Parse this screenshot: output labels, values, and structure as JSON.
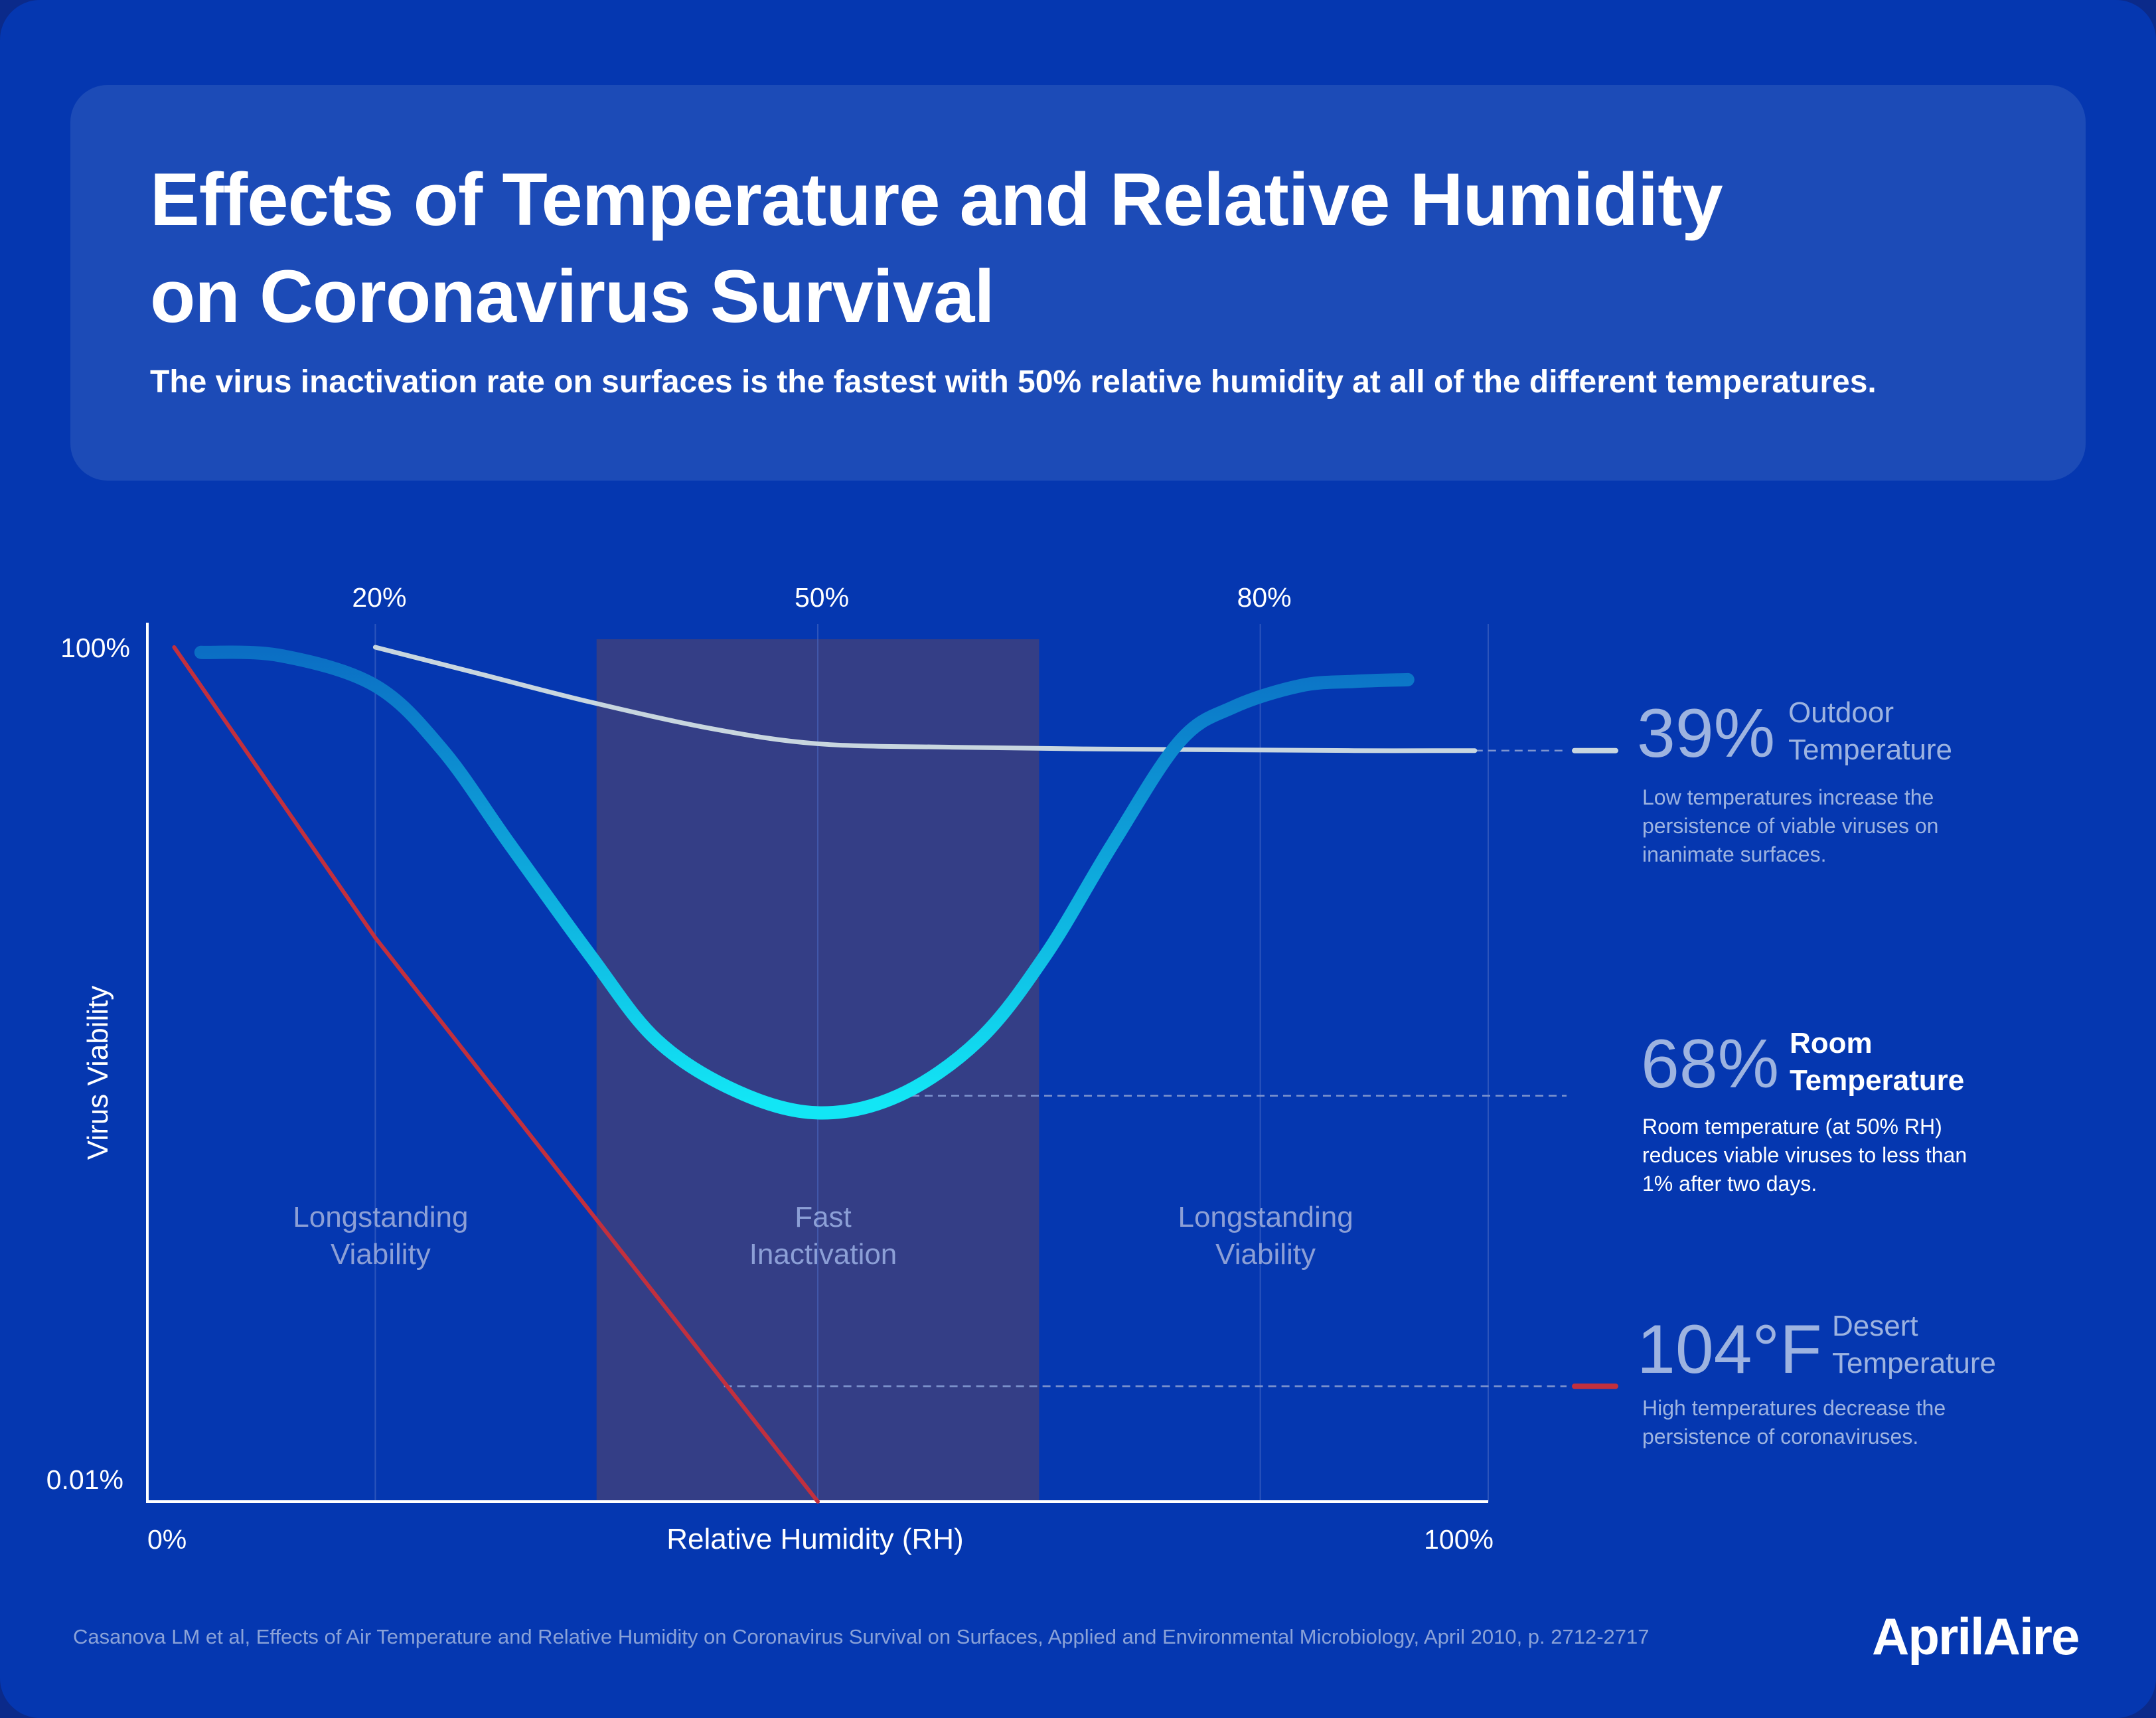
{
  "header": {
    "title_line1": "Effects of Temperature and Relative Humidity",
    "title_line2": "on Coronavirus Survival",
    "subtitle": "The virus inactivation rate on surfaces is the fastest with 50% relative humidity at all of the different temperatures."
  },
  "chart_data": {
    "type": "line",
    "xlabel": "Relative Humidity (RH)",
    "ylabel": "Virus Viability",
    "xlim": [
      0,
      100
    ],
    "ylim_labels": [
      "0.01%",
      "100%"
    ],
    "x_tick_labels_bottom": [
      "0%",
      "100%"
    ],
    "x_tick_labels_top": [
      {
        "x": 17,
        "label": "20%"
      },
      {
        "x": 50,
        "label": "50%"
      },
      {
        "x": 83,
        "label": "80%"
      }
    ],
    "gridlines_x": [
      17,
      50,
      83,
      100
    ],
    "shaded_region": {
      "x_from": 33.5,
      "x_to": 66.5
    },
    "zone_labels": [
      {
        "x": 17,
        "line1": "Longstanding",
        "line2": "Viability"
      },
      {
        "x": 50,
        "line1": "Fast",
        "line2": "Inactivation"
      },
      {
        "x": 83,
        "line1": "Longstanding",
        "line2": "Viability"
      }
    ],
    "y_scale_note": "0 = 0.01% (bottom), 1 = 100% (top), relative position",
    "series": [
      {
        "name": "39% Outdoor Temperature",
        "color": "#c8d6df",
        "x": [
          17,
          25,
          33,
          42,
          50,
          60,
          70,
          80,
          90,
          99
        ],
        "y": [
          1.0,
          0.968,
          0.936,
          0.905,
          0.887,
          0.883,
          0.881,
          0.88,
          0.879,
          0.879
        ]
      },
      {
        "name": "68% Room Temperature",
        "color_top": "#0b6ec4",
        "color_bottom": "#12e6f5",
        "x": [
          4,
          10,
          17,
          22,
          27,
          33,
          38,
          44,
          50,
          56,
          62,
          67,
          72,
          77,
          81,
          86,
          90,
          94
        ],
        "y": [
          0.994,
          0.99,
          0.955,
          0.88,
          0.77,
          0.64,
          0.54,
          0.48,
          0.455,
          0.475,
          0.54,
          0.64,
          0.77,
          0.89,
          0.93,
          0.955,
          0.96,
          0.962
        ]
      },
      {
        "name": "104°F Desert Temperature",
        "color": "#c2303e",
        "x": [
          2,
          17,
          50
        ],
        "y": [
          1.0,
          0.66,
          0.0
        ]
      }
    ],
    "reference_lines": [
      {
        "series": "39% Outdoor Temperature",
        "x_from": 99,
        "y": 0.879
      },
      {
        "series": "68% Room Temperature",
        "x_from": 55,
        "y": 0.475
      },
      {
        "series": "104°F Desert Temperature",
        "x_from": 43,
        "y": 0.135
      }
    ]
  },
  "legend": {
    "outdoor": {
      "value": "39%",
      "name_line1": "Outdoor",
      "name_line2": "Temperature",
      "desc": [
        "Low temperatures increase the",
        "persistence of viable viruses on",
        "inanimate surfaces."
      ],
      "color": "#c8d6df"
    },
    "room": {
      "value": "68%",
      "name_line1": "Room",
      "name_line2": "Temperature",
      "desc": [
        "Room temperature (at 50% RH)",
        "reduces viable viruses to less than",
        "1% after two days."
      ],
      "color": "#12e6f5"
    },
    "desert": {
      "value": "104°F",
      "name_line1": "Desert",
      "name_line2": "Temperature",
      "desc": [
        "High temperatures decrease the",
        "persistence of coronaviruses."
      ],
      "color": "#c2303e"
    }
  },
  "citation": "Casanova LM et al, Effects of Air Temperature and Relative Humidity on Coronavirus Survival on Surfaces, Applied and Environmental Microbiology, April 2010, p. 2712-2717",
  "logo": {
    "text": "AprilAire"
  }
}
